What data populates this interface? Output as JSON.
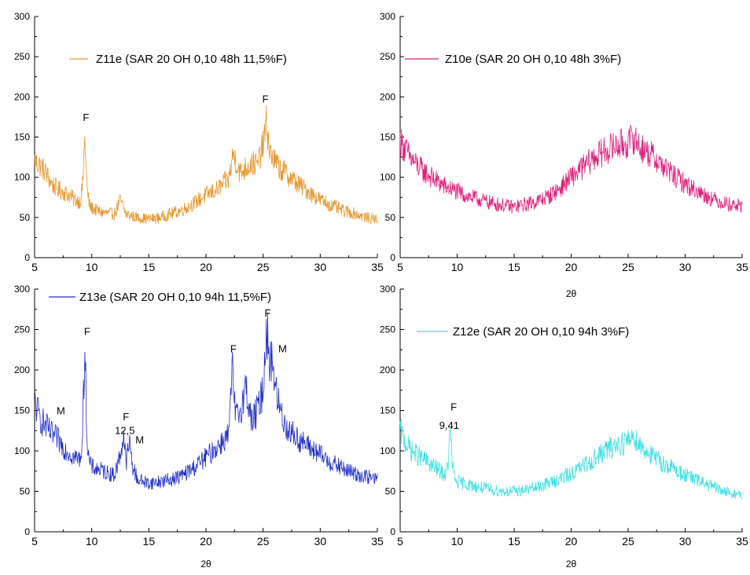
{
  "chart_data": [
    {
      "type": "line",
      "title": "",
      "xlabel": "",
      "ylabel": "",
      "xlim": [
        5,
        35
      ],
      "ylim": [
        0,
        300
      ],
      "x_ticks": [
        "5",
        "10",
        "15",
        "20",
        "25",
        "30",
        "35"
      ],
      "y_ticks": [
        "0",
        "50",
        "100",
        "150",
        "200",
        "250",
        "300"
      ],
      "grid": false,
      "legend": "top",
      "series": [
        {
          "name": "Z11e (SAR 20 OH 0,10 48h 11,5%F)",
          "color": "#e8962c",
          "x": [
            5,
            5.5,
            6,
            6.5,
            7,
            7.5,
            8,
            8.5,
            9,
            9.2,
            9.4,
            9.6,
            9.8,
            10,
            10.5,
            11,
            12,
            12.5,
            13,
            13.5,
            14,
            15,
            16,
            17,
            18,
            19,
            20,
            21,
            22,
            22.4,
            23,
            23.5,
            24,
            24.5,
            25,
            25.3,
            25.6,
            26,
            26.5,
            27,
            28,
            29,
            30,
            31,
            32,
            33,
            34,
            35
          ],
          "y": [
            120,
            115,
            105,
            92,
            85,
            82,
            78,
            72,
            70,
            90,
            150,
            85,
            65,
            62,
            58,
            56,
            54,
            72,
            54,
            52,
            50,
            48,
            50,
            55,
            60,
            68,
            78,
            85,
            98,
            130,
            105,
            112,
            118,
            115,
            140,
            168,
            130,
            120,
            110,
            105,
            92,
            82,
            72,
            65,
            58,
            55,
            50,
            48
          ]
        }
      ],
      "annotations": [
        {
          "text": "F",
          "x": 9.5,
          "y": 170
        },
        {
          "text": "F",
          "x": 25.2,
          "y": 193
        }
      ]
    },
    {
      "type": "line",
      "title": "",
      "xlabel": "2θ",
      "ylabel": "",
      "xlim": [
        5,
        35
      ],
      "ylim": [
        0,
        300
      ],
      "x_ticks": [
        "5",
        "10",
        "15",
        "20",
        "25",
        "30",
        "35"
      ],
      "y_ticks": [
        "0",
        "50",
        "100",
        "150",
        "200",
        "250",
        "300"
      ],
      "grid": false,
      "legend": "top",
      "series": [
        {
          "name": "Z10e (SAR 20 OH 0,10 48h 3%F)",
          "color": "#e0207c",
          "x": [
            5,
            6,
            7,
            8,
            9,
            10,
            11,
            12,
            13,
            14,
            15,
            16,
            17,
            18,
            19,
            20,
            21,
            22,
            23,
            24,
            25,
            25.5,
            26,
            27,
            28,
            29,
            30,
            31,
            32,
            33,
            34,
            35
          ],
          "y": [
            145,
            122,
            108,
            97,
            88,
            82,
            76,
            72,
            68,
            65,
            63,
            66,
            70,
            76,
            86,
            100,
            112,
            124,
            133,
            140,
            142,
            150,
            138,
            128,
            115,
            102,
            92,
            83,
            76,
            70,
            66,
            64
          ]
        }
      ],
      "annotations": []
    },
    {
      "type": "line",
      "title": "",
      "xlabel": "2θ",
      "ylabel": "",
      "xlim": [
        5,
        35
      ],
      "ylim": [
        0,
        300
      ],
      "x_ticks": [
        "5",
        "10",
        "15",
        "20",
        "25",
        "30",
        "35"
      ],
      "y_ticks": [
        "0",
        "50",
        "100",
        "150",
        "200",
        "250",
        "300"
      ],
      "grid": false,
      "legend": "top",
      "series": [
        {
          "name": "Z13e (SAR 20 OH 0,10 94h 11,5%F)",
          "color": "#1f2ec8",
          "x": [
            5,
            5.5,
            6,
            6.5,
            7,
            7.5,
            8,
            8.5,
            9,
            9.2,
            9.4,
            9.6,
            9.8,
            10,
            11,
            12,
            12.5,
            12.8,
            13,
            13.3,
            13.6,
            14,
            15,
            16,
            17,
            18,
            19,
            20,
            21,
            22,
            22.3,
            22.6,
            23,
            23.5,
            24,
            24.5,
            25,
            25.3,
            25.6,
            25.8,
            26.1,
            26.5,
            27,
            28,
            29,
            30,
            31,
            32,
            33,
            34,
            35
          ],
          "y": [
            160,
            140,
            130,
            120,
            115,
            105,
            98,
            92,
            90,
            120,
            235,
            110,
            85,
            80,
            75,
            70,
            95,
            120,
            85,
            110,
            80,
            65,
            60,
            62,
            65,
            70,
            80,
            92,
            105,
            120,
            200,
            140,
            150,
            180,
            135,
            150,
            175,
            258,
            200,
            220,
            175,
            150,
            130,
            115,
            105,
            95,
            85,
            78,
            72,
            68,
            65
          ]
        }
      ],
      "annotations": [
        {
          "text": "M",
          "x": 7.3,
          "y": 145
        },
        {
          "text": "F",
          "x": 9.6,
          "y": 243
        },
        {
          "text": "F",
          "x": 13.0,
          "y": 138
        },
        {
          "text": "12,5",
          "x": 12.9,
          "y": 121
        },
        {
          "text": "M",
          "x": 14.2,
          "y": 109
        },
        {
          "text": "F",
          "x": 22.4,
          "y": 222
        },
        {
          "text": "F",
          "x": 25.4,
          "y": 266
        },
        {
          "text": "M",
          "x": 26.7,
          "y": 222
        }
      ]
    },
    {
      "type": "line",
      "title": "",
      "xlabel": "2θ",
      "ylabel": "",
      "xlim": [
        5,
        35
      ],
      "ylim": [
        0,
        300
      ],
      "x_ticks": [
        "5",
        "10",
        "15",
        "20",
        "25",
        "30",
        "35"
      ],
      "y_ticks": [
        "0",
        "50",
        "100",
        "150",
        "200",
        "250",
        "300"
      ],
      "grid": false,
      "legend": "top",
      "series": [
        {
          "name": "Z12e (SAR 20 OH 0,10 94h 3%F)",
          "color": "#3ee0e6",
          "x": [
            5,
            5.5,
            6,
            6.5,
            7,
            7.5,
            8,
            8.5,
            9,
            9.2,
            9.41,
            9.6,
            9.8,
            10,
            11,
            12,
            13,
            14,
            15,
            16,
            17,
            18,
            19,
            20,
            21,
            22,
            23,
            24,
            25,
            25.4,
            26,
            27,
            28,
            29,
            30,
            31,
            32,
            33,
            34,
            35
          ],
          "y": [
            125,
            110,
            100,
            95,
            90,
            85,
            80,
            75,
            70,
            85,
            125,
            80,
            65,
            62,
            58,
            55,
            52,
            50,
            50,
            52,
            55,
            60,
            65,
            72,
            80,
            90,
            100,
            108,
            112,
            120,
            108,
            95,
            85,
            78,
            70,
            64,
            58,
            52,
            48,
            45
          ]
        }
      ],
      "annotations": [
        {
          "text": "F",
          "x": 9.7,
          "y": 150
        },
        {
          "text": "9,41",
          "x": 9.3,
          "y": 127
        }
      ]
    }
  ]
}
